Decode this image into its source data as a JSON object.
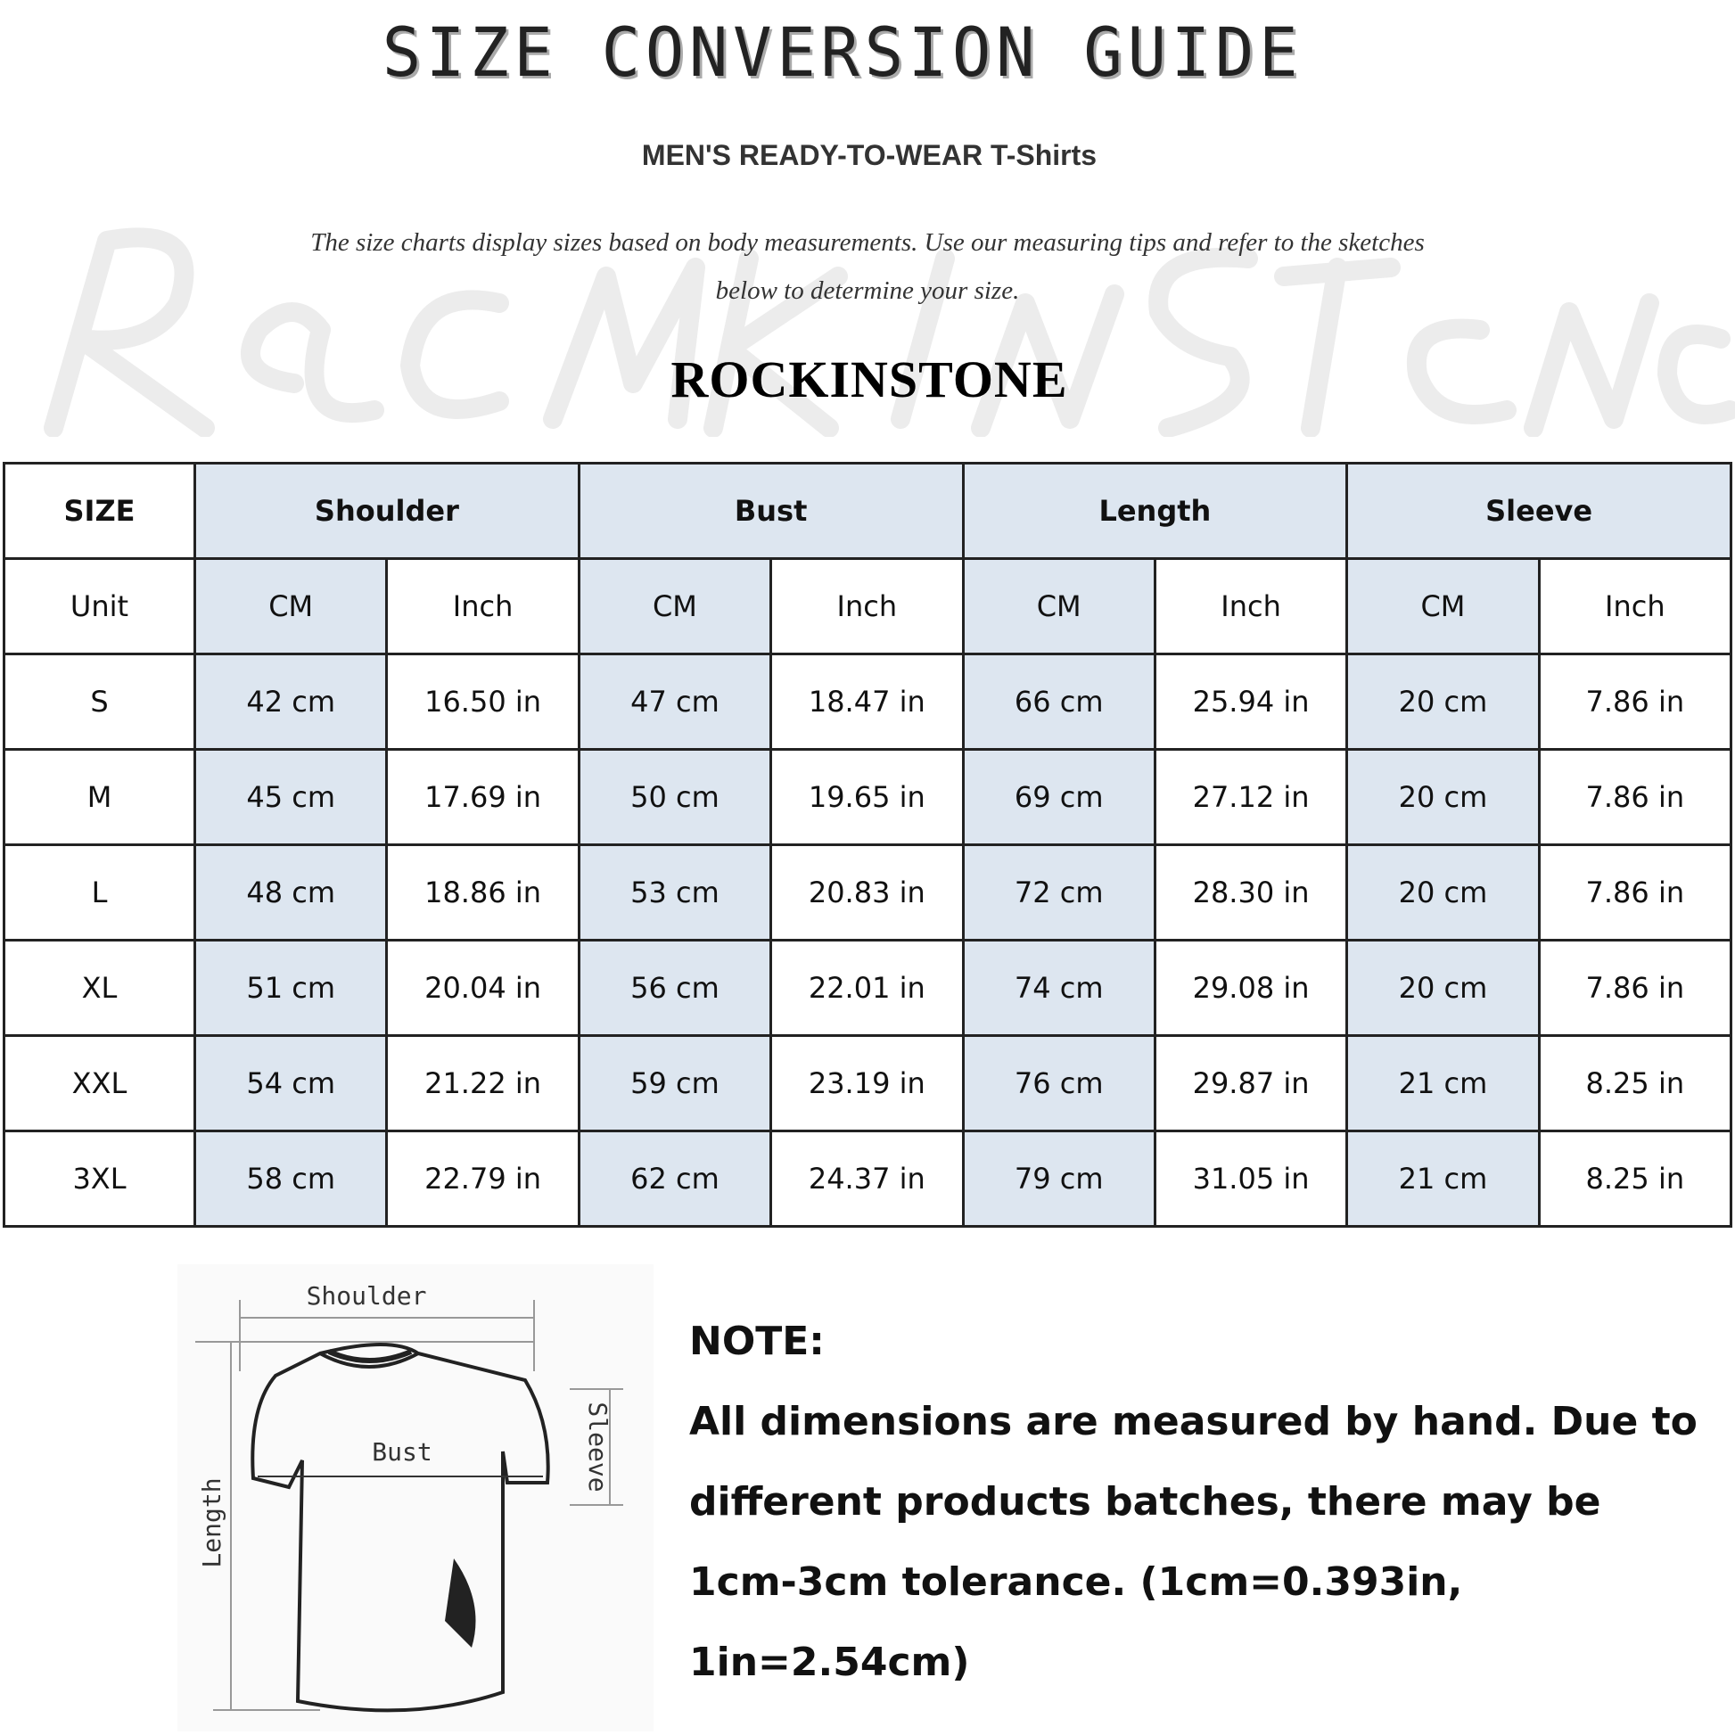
{
  "header": {
    "title": "SIZE CONVERSION GUIDE",
    "subtitle": "MEN'S READY-TO-WEAR T-Shirts",
    "intro_line1": "The size charts display sizes based on body measurements. Use our measuring tips and refer to the sketches",
    "intro_line2": "below to determine your size.",
    "watermark": "RockInStone",
    "brand": "ROCKINSTONE"
  },
  "table": {
    "size_label": "SIZE",
    "groups": [
      "Shoulder",
      "Bust",
      "Length",
      "Sleeve"
    ],
    "unit_label": "Unit",
    "units": [
      "CM",
      "Inch",
      "CM",
      "Inch",
      "CM",
      "Inch",
      "CM",
      "Inch"
    ],
    "rows": [
      {
        "size": "S",
        "values": [
          "42 cm",
          "16.50 in",
          "47 cm",
          "18.47 in",
          "66 cm",
          "25.94 in",
          "20 cm",
          "7.86 in"
        ]
      },
      {
        "size": "M",
        "values": [
          "45 cm",
          "17.69 in",
          "50 cm",
          "19.65 in",
          "69 cm",
          "27.12 in",
          "20 cm",
          "7.86 in"
        ]
      },
      {
        "size": "L",
        "values": [
          "48 cm",
          "18.86 in",
          "53 cm",
          "20.83 in",
          "72 cm",
          "28.30 in",
          "20 cm",
          "7.86 in"
        ]
      },
      {
        "size": "XL",
        "values": [
          "51 cm",
          "20.04 in",
          "56 cm",
          "22.01 in",
          "74 cm",
          "29.08 in",
          "20 cm",
          "7.86 in"
        ]
      },
      {
        "size": "XXL",
        "values": [
          "54 cm",
          "21.22 in",
          "59 cm",
          "23.19 in",
          "76 cm",
          "29.87 in",
          "21 cm",
          "8.25 in"
        ]
      },
      {
        "size": "3XL",
        "values": [
          "58 cm",
          "22.79 in",
          "62 cm",
          "24.37 in",
          "79 cm",
          "31.05 in",
          "21 cm",
          "8.25 in"
        ]
      }
    ],
    "highlight_color": "#dde6f0"
  },
  "diagram": {
    "shoulder": "Shoulder",
    "bust": "Bust",
    "sleeve": "Sleeve",
    "length": "Length"
  },
  "note": {
    "heading": "NOTE:",
    "lines": [
      "All dimensions are measured by hand. Due to",
      "different products batches, there may be",
      "1cm-3cm tolerance. (1cm=0.393in, 1in=2.54cm)"
    ]
  }
}
